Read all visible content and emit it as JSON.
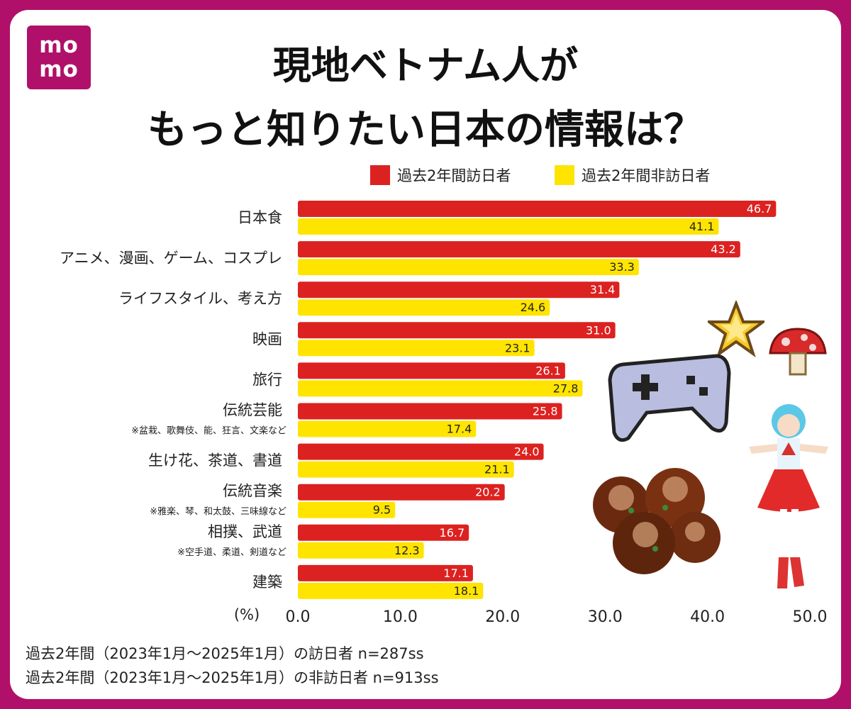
{
  "logo": {
    "line1": "mo",
    "line2": "mo"
  },
  "title": {
    "line1": "現地ベトナム人が",
    "line2": "もっと知りたい日本の情報は？"
  },
  "colors": {
    "frame": "#b0106a",
    "visited": "#dc2220",
    "not_visited": "#ffe400"
  },
  "chart_data": {
    "type": "bar",
    "orientation": "horizontal",
    "categories": [
      "日本食",
      "アニメ、漫画、ゲーム、コスプレ",
      "ライフスタイル、考え方",
      "映画",
      "旅行",
      "伝統芸能",
      "生け花、茶道、書道",
      "伝統音楽",
      "相撲、武道",
      "建築"
    ],
    "category_notes": [
      "",
      "",
      "",
      "",
      "",
      "※盆栽、歌舞伎、能、狂言、文楽など",
      "",
      "※雅楽、琴、和太鼓、三味線など",
      "※空手道、柔道、剣道など",
      ""
    ],
    "series": [
      {
        "name": "過去2年間訪日者",
        "color": "#dc2220",
        "values": [
          46.7,
          43.2,
          31.4,
          31.0,
          26.1,
          25.8,
          24.0,
          20.2,
          16.7,
          17.1
        ]
      },
      {
        "name": "過去2年間非訪日者",
        "color": "#ffe400",
        "values": [
          41.1,
          33.3,
          24.6,
          23.1,
          27.8,
          17.4,
          21.1,
          9.5,
          12.3,
          18.1
        ]
      }
    ],
    "xlabel": "(%)",
    "xlim": [
      0,
      50
    ],
    "xticks": [
      "0.0",
      "10.0",
      "20.0",
      "30.0",
      "40.0",
      "50.0"
    ],
    "legend_position": "top-right"
  },
  "notes": {
    "line1": "過去2年間（2023年1月〜2025年1月）の訪日者 n=287ss",
    "line2": "過去2年間（2023年1月〜2025年1月）の非訪日者 n=913ss"
  }
}
